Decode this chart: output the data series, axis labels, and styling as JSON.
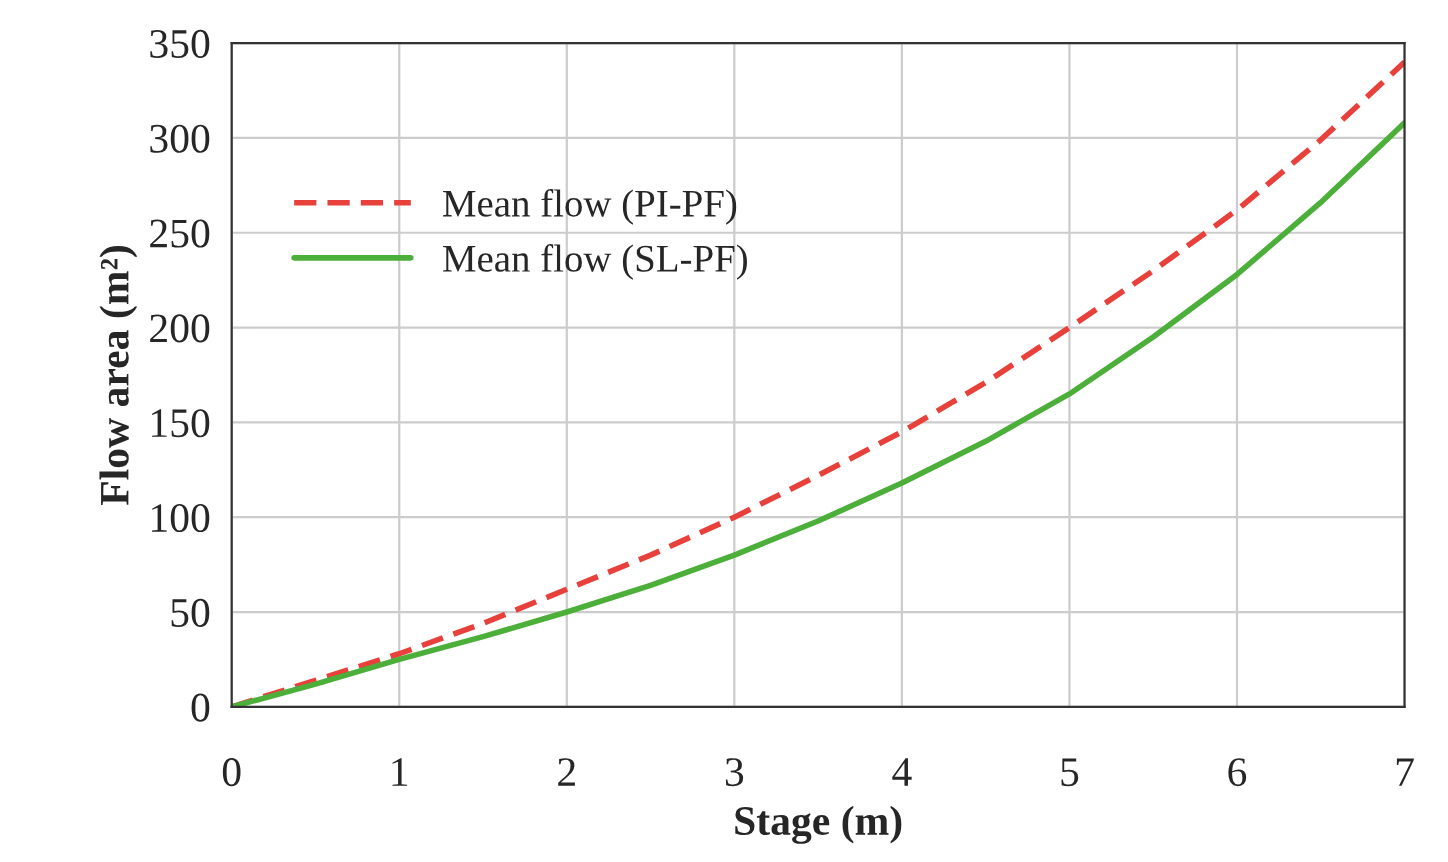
{
  "chart_data": {
    "type": "line",
    "xlabel": "Stage (m)",
    "ylabel": "Flow area (m²)",
    "x": [
      0,
      0.5,
      1,
      1.5,
      2,
      2.5,
      3,
      3.5,
      4,
      4.5,
      5,
      5.5,
      6,
      6.5,
      7
    ],
    "series": [
      {
        "name": "Mean flow (PI-PF)",
        "color": "#e8403a",
        "line_style": "dashed",
        "values": [
          0,
          14,
          28,
          44,
          62,
          80,
          100,
          122,
          145,
          171,
          200,
          230,
          262,
          299,
          340
        ]
      },
      {
        "name": "Mean flow (SL-PF)",
        "color": "#4caf3a",
        "line_style": "solid",
        "values": [
          0,
          12,
          25,
          37,
          50,
          64,
          80,
          98,
          118,
          140,
          165,
          195,
          228,
          266,
          308
        ]
      }
    ],
    "xlim": [
      0,
      7
    ],
    "xticks": [
      0,
      1,
      2,
      3,
      4,
      5,
      6,
      7
    ],
    "ylim": [
      0,
      350
    ],
    "yticks": [
      0,
      50,
      100,
      150,
      200,
      250,
      300,
      350
    ],
    "grid": true,
    "legend": "top left"
  }
}
